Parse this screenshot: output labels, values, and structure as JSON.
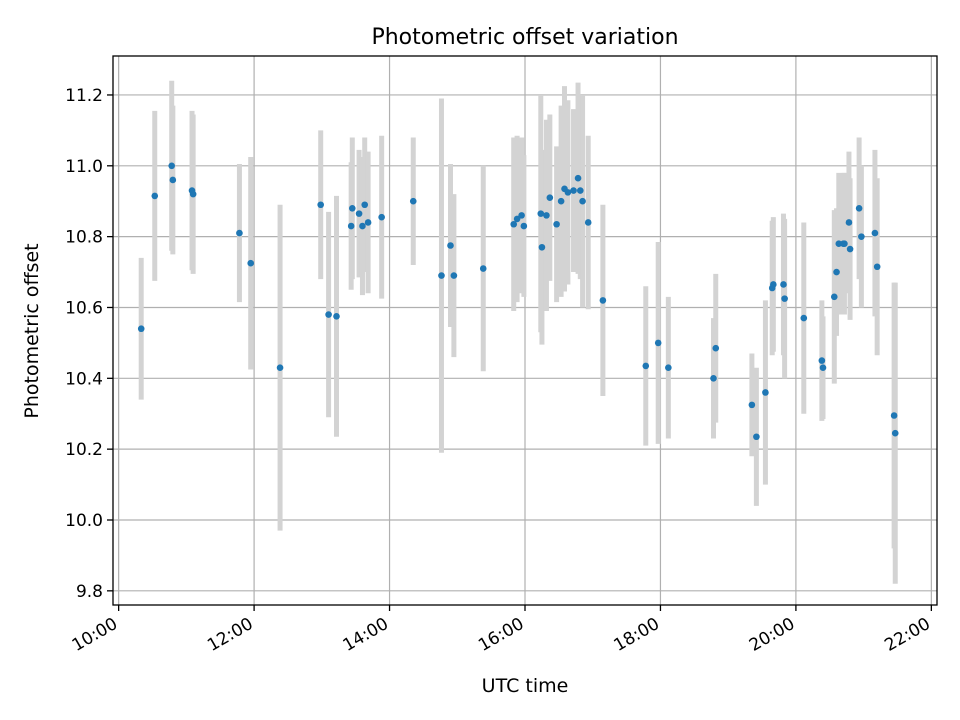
{
  "chart_data": {
    "type": "scatter",
    "title": "Photometric offset variation",
    "xlabel": "UTC time",
    "ylabel": "Photometric offset",
    "x_unit": "hours UTC",
    "xlim": [
      "09:55",
      "22:05"
    ],
    "ylim": [
      9.76,
      11.31
    ],
    "xticks": [
      "10:00",
      "12:00",
      "14:00",
      "16:00",
      "18:00",
      "20:00",
      "22:00"
    ],
    "yticks": [
      "9.8",
      "10.0",
      "10.2",
      "10.4",
      "10.6",
      "10.8",
      "11.0",
      "11.2"
    ],
    "grid": true,
    "legend": "none",
    "colors": {
      "points": "#1f77b4",
      "errorbars": "#d3d3d3",
      "grid": "#b0b0b0"
    },
    "series": [
      {
        "x": [
          "10:20",
          "10:32",
          "10:47",
          "10:48",
          "11:05",
          "11:06",
          "11:47",
          "11:57",
          "12:23",
          "12:59",
          "13:06",
          "13:13",
          "13:26",
          "13:27",
          "13:33",
          "13:36",
          "13:38",
          "13:41",
          "13:53",
          "14:21",
          "14:46",
          "14:54",
          "14:57",
          "15:23",
          "15:50",
          "15:53",
          "15:57",
          "15:59",
          "16:14",
          "16:15",
          "16:19",
          "16:22",
          "16:28",
          "16:32",
          "16:35",
          "16:38",
          "16:43",
          "16:47",
          "16:49",
          "16:51",
          "16:56",
          "17:09",
          "17:47",
          "17:58",
          "18:07",
          "18:47",
          "18:49",
          "19:21",
          "19:25",
          "19:33",
          "19:39",
          "19:40",
          "19:49",
          "19:50",
          "20:07",
          "20:23",
          "20:24",
          "20:34",
          "20:36",
          "20:38",
          "20:42",
          "20:43",
          "20:47",
          "20:48",
          "20:56",
          "20:58",
          "21:10",
          "21:12",
          "21:27",
          "21:28"
        ],
        "y": [
          10.54,
          10.915,
          11.0,
          10.96,
          10.93,
          10.92,
          10.81,
          10.725,
          10.43,
          10.89,
          10.58,
          10.575,
          10.83,
          10.88,
          10.865,
          10.83,
          10.89,
          10.84,
          10.855,
          10.9,
          10.69,
          10.775,
          10.69,
          10.71,
          10.835,
          10.85,
          10.86,
          10.83,
          10.865,
          10.77,
          10.86,
          10.91,
          10.835,
          10.9,
          10.935,
          10.925,
          10.93,
          10.965,
          10.93,
          10.9,
          10.84,
          10.62,
          10.435,
          10.5,
          10.43,
          10.4,
          10.485,
          10.325,
          10.235,
          10.36,
          10.655,
          10.665,
          10.665,
          10.625,
          10.57,
          10.45,
          10.43,
          10.63,
          10.7,
          10.78,
          10.78,
          10.78,
          10.84,
          10.765,
          10.88,
          10.8,
          10.81,
          10.715,
          10.295,
          10.245
        ],
        "err": [
          0.2,
          0.24,
          0.24,
          0.21,
          0.225,
          0.225,
          0.195,
          0.3,
          0.46,
          0.21,
          0.29,
          0.34,
          0.18,
          0.2,
          0.18,
          0.195,
          0.19,
          0.2,
          0.23,
          0.18,
          0.5,
          0.23,
          0.23,
          0.29,
          0.245,
          0.235,
          0.22,
          0.2,
          0.335,
          0.275,
          0.27,
          0.235,
          0.22,
          0.27,
          0.29,
          0.26,
          0.23,
          0.27,
          0.25,
          0.3,
          0.245,
          0.27,
          0.225,
          0.285,
          0.2,
          0.17,
          0.21,
          0.145,
          0.195,
          0.26,
          0.19,
          0.19,
          0.2,
          0.225,
          0.27,
          0.17,
          0.145,
          0.245,
          0.18,
          0.2,
          0.2,
          0.2,
          0.2,
          0.2,
          0.2,
          0.2,
          0.235,
          0.25,
          0.375,
          0.425
        ]
      }
    ]
  }
}
